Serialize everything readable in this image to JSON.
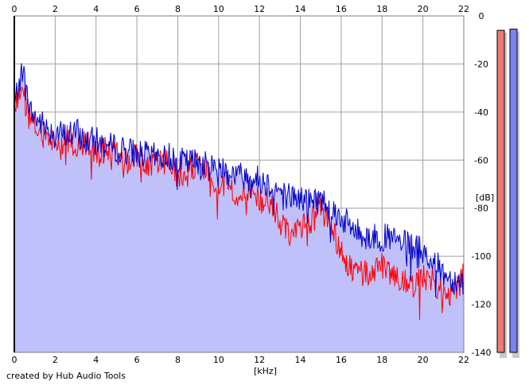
{
  "chart_data": {
    "type": "area",
    "x_unit": "[kHz]",
    "y_unit": "[dB]",
    "xlim": [
      0,
      22
    ],
    "ylim": [
      -140,
      0
    ],
    "x_ticks": [
      0,
      2,
      4,
      6,
      8,
      10,
      12,
      14,
      16,
      18,
      20,
      22
    ],
    "x_tick_labels": [
      "0",
      "2",
      "4",
      "6",
      "8",
      "10",
      "12",
      "14",
      "16",
      "18",
      "20",
      "22"
    ],
    "y_ticks": [
      0,
      -20,
      -40,
      -60,
      -80,
      -100,
      -120,
      -140
    ],
    "y_tick_labels": [
      "0",
      "-20",
      "-40",
      "-60",
      "-80",
      "-100",
      "-120",
      "-140"
    ],
    "grid": true,
    "colors": {
      "fill": "#c0c0fa",
      "series_blue": "#0000c8",
      "series_red": "#ff0000",
      "grid": "#a0a0a0",
      "meter_left": "#f07878",
      "meter_right": "#8080f0"
    },
    "series": [
      {
        "color": "#0000c8",
        "x": [
          0,
          0.2,
          0.4,
          0.6,
          0.8,
          1,
          1.5,
          2,
          2.5,
          3,
          3.5,
          4,
          4.5,
          5,
          5.5,
          6,
          6.5,
          7,
          7.5,
          8,
          8.5,
          9,
          9.5,
          10,
          10.5,
          11,
          11.5,
          12,
          12.5,
          13,
          13.5,
          14,
          14.5,
          15,
          15.5,
          16,
          16.5,
          17,
          17.5,
          18,
          18.5,
          19,
          19.5,
          20,
          20.5,
          21,
          21.5,
          22
        ],
        "y": [
          -38,
          -28,
          -22,
          -32,
          -40,
          -42,
          -46,
          -48,
          -50,
          -48,
          -52,
          -52,
          -54,
          -55,
          -56,
          -57,
          -58,
          -59,
          -58,
          -60,
          -61,
          -60,
          -63,
          -62,
          -65,
          -66,
          -67,
          -68,
          -70,
          -73,
          -75,
          -76,
          -77,
          -76,
          -80,
          -84,
          -88,
          -91,
          -92,
          -92,
          -93,
          -95,
          -96,
          -98,
          -102,
          -107,
          -110,
          -110
        ]
      },
      {
        "color": "#ff0000",
        "x": [
          0,
          0.2,
          0.4,
          0.6,
          0.8,
          1,
          1.5,
          2,
          2.5,
          3,
          3.5,
          4,
          4.5,
          5,
          5.5,
          6,
          6.5,
          7,
          7.5,
          8,
          8.5,
          9,
          9.5,
          10,
          10.5,
          11,
          11.5,
          12,
          12.5,
          13,
          13.5,
          14,
          14.5,
          15,
          15.5,
          16,
          16.5,
          17,
          17.5,
          18,
          18.5,
          19,
          19.5,
          20,
          20.5,
          21,
          21.5,
          22
        ],
        "y": [
          -40,
          -32,
          -30,
          -38,
          -44,
          -46,
          -50,
          -52,
          -50,
          -55,
          -53,
          -58,
          -56,
          -57,
          -60,
          -58,
          -62,
          -61,
          -60,
          -66,
          -64,
          -62,
          -66,
          -70,
          -70,
          -75,
          -73,
          -76,
          -78,
          -85,
          -90,
          -88,
          -86,
          -80,
          -88,
          -98,
          -106,
          -108,
          -106,
          -104,
          -110,
          -108,
          -112,
          -108,
          -110,
          -114,
          -116,
          -108
        ]
      }
    ],
    "meters": [
      {
        "name": "left-channel",
        "color": "#f07878",
        "level": -6.0
      },
      {
        "name": "right-channel",
        "color": "#8080f0",
        "level": -5.5
      }
    ]
  },
  "credit": "created by Hub Audio Tools"
}
